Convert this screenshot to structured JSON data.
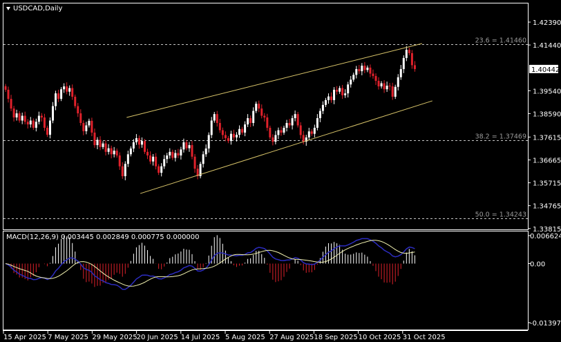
{
  "chart_title": "USDCAD,Daily",
  "colors": {
    "background": "#000000",
    "bull": "#ffffff",
    "bear": "#e0212b",
    "channel": "#d9c56a",
    "macd_main": "#2c2cc0",
    "macd_signal": "#f2f2b0",
    "grid": "#c8c8c8"
  },
  "price_axis": {
    "ticks": [
      "1.42390",
      "1.41440",
      "1.39540",
      "1.38590",
      "1.37615",
      "1.36665",
      "1.35715",
      "1.34765",
      "1.33815"
    ],
    "current_price": "1.40442"
  },
  "fibonacci": [
    {
      "label": "23.6 = 1.41460",
      "level": 1.4146
    },
    {
      "label": "38.2 = 1.37469",
      "level": 1.37469
    },
    {
      "label": "50.0 = 1.34243",
      "level": 1.34243
    }
  ],
  "macd": {
    "label": "MACD(12,26,9) 0.003445 0.002849 0.000775 0.000000",
    "axis_ticks": [
      "0.006624",
      "0.00",
      "-0.013979"
    ],
    "range": [
      -0.013979,
      0.006624
    ]
  },
  "date_axis": [
    "15 Apr 2025",
    "7 May 2025",
    "29 May 2025",
    "20 Jun 2025",
    "14 Jul 2025",
    "5 Aug 2025",
    "27 Aug 2025",
    "18 Sep 2025",
    "10 Oct 2025",
    "31 Oct 2025"
  ],
  "chart_data": {
    "type": "candlestick",
    "symbol": "USDCAD",
    "timeframe": "Daily",
    "ylim": [
      1.33815,
      1.4239
    ],
    "closes": [
      1.3958,
      1.392,
      1.388,
      1.3843,
      1.386,
      1.383,
      1.385,
      1.3825,
      1.3814,
      1.383,
      1.38,
      1.3825,
      1.385,
      1.3843,
      1.38,
      1.3771,
      1.383,
      1.389,
      1.3943,
      1.392,
      1.396,
      1.3972,
      1.395,
      1.3965,
      1.3929,
      1.389,
      1.386,
      1.382,
      1.3786,
      1.381,
      1.3829,
      1.378,
      1.3728,
      1.375,
      1.372,
      1.3735,
      1.37,
      1.3715,
      1.369,
      1.3705,
      1.3685,
      1.364,
      1.3599,
      1.365,
      1.369,
      1.3714,
      1.374,
      1.3757,
      1.373,
      1.3745,
      1.37,
      1.3685,
      1.366,
      1.368,
      1.364,
      1.3613,
      1.364,
      1.367,
      1.3685,
      1.37,
      1.3675,
      1.3695,
      1.3685,
      1.371,
      1.374,
      1.3715,
      1.3728,
      1.368,
      1.363,
      1.3599,
      1.365,
      1.369,
      1.3714,
      1.377,
      1.383,
      1.3857,
      1.382,
      1.379,
      1.377,
      1.3757,
      1.3745,
      1.3775,
      1.376,
      1.3771,
      1.3795,
      1.378,
      1.3814,
      1.384,
      1.382,
      1.387,
      1.39,
      1.388,
      1.385,
      1.3843,
      1.38,
      1.376,
      1.3742,
      1.377,
      1.379,
      1.378,
      1.38,
      1.382,
      1.381,
      1.384,
      1.3857,
      1.381,
      1.377,
      1.3742,
      1.376,
      1.3785,
      1.3775,
      1.38,
      1.384,
      1.387,
      1.3895,
      1.3915,
      1.393,
      1.3915,
      1.3958,
      1.395,
      1.3965,
      1.3935,
      1.3943,
      1.398,
      1.4,
      1.402,
      1.4044,
      1.4035,
      1.4058,
      1.404,
      1.405,
      1.4025,
      1.4015,
      1.3995,
      1.3972,
      1.3985,
      1.396,
      1.3975,
      1.3972,
      1.3929,
      1.397,
      1.401,
      1.4044,
      1.409,
      1.4124,
      1.411,
      1.406,
      1.4044
    ],
    "channel": [
      {
        "from_bar": 43.5,
        "from_price": 1.3843,
        "to_bar": 149.6,
        "to_price": 1.415
      },
      {
        "from_bar": 48.4,
        "from_price": 1.3527,
        "to_bar": 153.3,
        "to_price": 1.3912
      }
    ]
  }
}
